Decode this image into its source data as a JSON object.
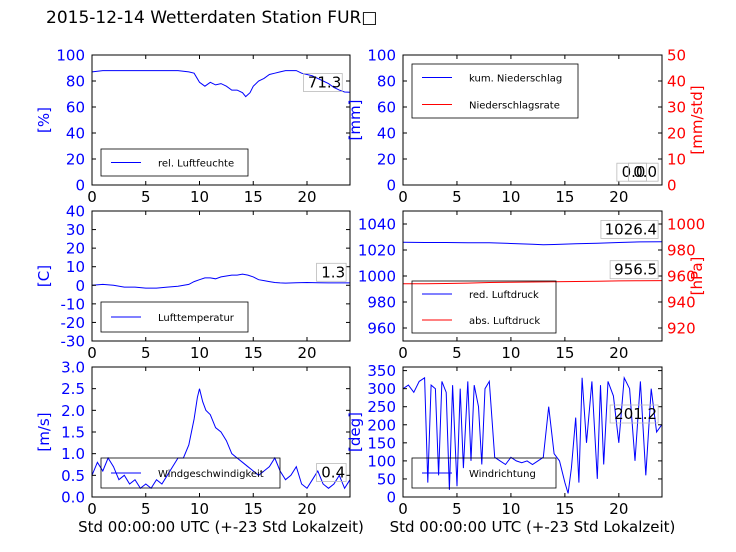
{
  "title": "2015-12-14 Wetterdaten Station FUR□",
  "colors": {
    "primary": "#0000ff",
    "secondary": "#ff0000",
    "axis": "#000000"
  },
  "chart_data": [
    {
      "id": "humidity",
      "type": "line",
      "title": "",
      "xlabel": "",
      "ylabel": "[%]",
      "xlim": [
        0,
        24
      ],
      "ylim": [
        0,
        100
      ],
      "xticks": [
        0,
        5,
        10,
        15,
        20
      ],
      "yticks": [
        0,
        20,
        40,
        60,
        80,
        100
      ],
      "legend_position": "lower-left",
      "series": [
        {
          "name": "rel. Luftfeuchte",
          "color": "#0000ff",
          "x": [
            0,
            1,
            2,
            3,
            4,
            5,
            6,
            7,
            8,
            9,
            9.5,
            10,
            10.5,
            11,
            11.5,
            12,
            12.5,
            13,
            13.5,
            14,
            14.3,
            14.7,
            15,
            15.5,
            16,
            16.5,
            17,
            17.5,
            18,
            18.5,
            19,
            19.5,
            20,
            20.5,
            21,
            21.5,
            22,
            22.5,
            23,
            23.5,
            24
          ],
          "y": [
            87,
            88,
            88,
            88,
            88,
            88,
            88,
            88,
            88,
            87,
            86,
            79,
            76,
            79,
            77,
            78,
            76,
            73,
            73,
            71,
            68,
            71,
            76,
            80,
            82,
            85,
            86,
            87,
            88,
            88,
            88,
            86,
            85,
            84,
            82,
            80,
            78,
            75,
            73,
            71.5,
            71.3
          ]
        }
      ],
      "annotations": [
        {
          "label": "71.3"
        }
      ]
    },
    {
      "id": "precip",
      "type": "line",
      "title": "",
      "xlabel": "",
      "ylabel": "[mm]",
      "ylabel_right": "[mm/std]",
      "xlim": [
        0,
        24
      ],
      "ylim": [
        0,
        100
      ],
      "ylim_right": [
        0,
        50
      ],
      "xticks": [
        0,
        5,
        10,
        15,
        20
      ],
      "yticks": [
        0,
        20,
        40,
        60,
        80,
        100
      ],
      "yticks_right": [
        0,
        10,
        20,
        30,
        40,
        50
      ],
      "legend_position": "upper-left",
      "series": [
        {
          "name": "kum. Niederschlag",
          "color": "#0000ff",
          "axis": "left",
          "x": [
            0,
            24
          ],
          "y": [
            0,
            0
          ]
        },
        {
          "name": "Niederschlagsrate",
          "color": "#ff0000",
          "axis": "right",
          "x": [
            0,
            24
          ],
          "y": [
            0,
            0
          ]
        }
      ],
      "annotations": [
        {
          "label": "0.0"
        },
        {
          "label": "0.0"
        }
      ]
    },
    {
      "id": "temperature",
      "type": "line",
      "title": "",
      "xlabel": "",
      "ylabel": "[C]",
      "xlim": [
        0,
        24
      ],
      "ylim": [
        -30,
        40
      ],
      "xticks": [
        0,
        5,
        10,
        15,
        20
      ],
      "yticks": [
        -30,
        -20,
        -10,
        0,
        10,
        20,
        30,
        40
      ],
      "legend_position": "lower-left",
      "series": [
        {
          "name": "Lufttemperatur",
          "color": "#0000ff",
          "x": [
            0,
            1,
            2,
            3,
            4,
            5,
            6,
            7,
            8,
            9,
            9.5,
            10,
            10.5,
            11,
            11.5,
            12,
            12.5,
            13,
            13.5,
            14,
            14.5,
            15,
            15.5,
            16,
            16.5,
            17,
            17.5,
            18,
            19,
            20,
            21,
            22,
            23,
            24
          ],
          "y": [
            0,
            0.5,
            0,
            -1,
            -1,
            -1.5,
            -1.5,
            -1,
            -0.5,
            0.5,
            2,
            3,
            4,
            4,
            3.5,
            4.5,
            5,
            5.5,
            5.5,
            6,
            5.5,
            4.5,
            3,
            2.5,
            2,
            1.5,
            1.3,
            1.2,
            1.4,
            1.5,
            1.4,
            1.3,
            1.3,
            1.3
          ]
        }
      ],
      "annotations": [
        {
          "label": "1.3"
        }
      ]
    },
    {
      "id": "pressure",
      "type": "line",
      "title": "",
      "xlabel": "",
      "ylabel": "",
      "ylabel_right": "[hPa]",
      "xlim": [
        0,
        24
      ],
      "ylim": [
        950,
        1050
      ],
      "ylim_right": [
        910,
        1010
      ],
      "xticks": [
        0,
        5,
        10,
        15,
        20
      ],
      "yticks": [
        960,
        980,
        1000,
        1020,
        1040
      ],
      "yticks_right": [
        920,
        940,
        960,
        980,
        1000
      ],
      "legend_position": "lower-left",
      "series": [
        {
          "name": "red. Luftdruck",
          "color": "#0000ff",
          "axis": "left",
          "x": [
            0,
            2,
            4,
            6,
            8,
            10,
            12,
            13,
            14,
            16,
            18,
            20,
            22,
            24
          ],
          "y": [
            1026,
            1025.8,
            1025.8,
            1025.6,
            1025.6,
            1025,
            1024.5,
            1024,
            1024.2,
            1024.8,
            1025.2,
            1025.8,
            1026.2,
            1026.4
          ]
        },
        {
          "name": "abs. Luftdruck",
          "color": "#ff0000",
          "axis": "right",
          "x": [
            0,
            2,
            4,
            6,
            8,
            10,
            12,
            14,
            16,
            18,
            20,
            22,
            24
          ],
          "y": [
            954,
            954,
            954.2,
            954.5,
            955,
            955.2,
            955.4,
            955.6,
            955.8,
            956,
            956.2,
            956.4,
            956.5
          ]
        }
      ],
      "annotations": [
        {
          "label": "1026.4"
        },
        {
          "label": "956.5"
        }
      ]
    },
    {
      "id": "windspeed",
      "type": "line",
      "title": "",
      "xlabel": "Std 00:00:00 UTC (+-23 Std Lokalzeit)",
      "ylabel": "[m/s]",
      "xlim": [
        0,
        24
      ],
      "ylim": [
        0,
        3
      ],
      "xticks": [
        0,
        5,
        10,
        15,
        20
      ],
      "yticks": [
        0.0,
        0.5,
        1.0,
        1.5,
        2.0,
        2.5,
        3.0
      ],
      "yticklabels": [
        "0.0",
        "0.5",
        "1.0",
        "1.5",
        "2.0",
        "2.5",
        "3.0"
      ],
      "legend_position": "lower-left",
      "series": [
        {
          "name": "Windgeschwindigkeit",
          "color": "#0000ff",
          "x": [
            0,
            0.5,
            1,
            1.5,
            2,
            2.5,
            3,
            3.5,
            4,
            4.5,
            5,
            5.5,
            6,
            6.5,
            7,
            7.5,
            8,
            8.5,
            9,
            9.5,
            9.8,
            10,
            10.3,
            10.6,
            11,
            11.5,
            12,
            12.5,
            13,
            13.5,
            14,
            14.5,
            15,
            15.5,
            16,
            16.5,
            17,
            17.5,
            18,
            18.5,
            19,
            19.5,
            20,
            20.5,
            21,
            21.5,
            22,
            22.5,
            23,
            23.5,
            24
          ],
          "y": [
            0.5,
            0.8,
            0.6,
            0.9,
            0.7,
            0.4,
            0.5,
            0.3,
            0.4,
            0.2,
            0.3,
            0.2,
            0.4,
            0.3,
            0.5,
            0.7,
            0.9,
            0.9,
            1.2,
            1.8,
            2.3,
            2.5,
            2.2,
            2.0,
            1.9,
            1.6,
            1.5,
            1.3,
            1.0,
            0.9,
            0.8,
            0.7,
            0.6,
            0.5,
            0.6,
            0.7,
            0.9,
            0.6,
            0.4,
            0.5,
            0.7,
            0.3,
            0.2,
            0.4,
            0.6,
            0.3,
            0.2,
            0.3,
            0.5,
            0.2,
            0.4
          ]
        }
      ],
      "annotations": [
        {
          "label": "0.4"
        }
      ]
    },
    {
      "id": "winddir",
      "type": "line",
      "title": "",
      "xlabel": "Std 00:00:00 UTC (+-23 Std Lokalzeit)",
      "ylabel": "[deg]",
      "xlim": [
        0,
        24
      ],
      "ylim": [
        0,
        360
      ],
      "xticks": [
        0,
        5,
        10,
        15,
        20
      ],
      "yticks": [
        0,
        50,
        100,
        150,
        200,
        250,
        300,
        350
      ],
      "legend_position": "lower-left",
      "series": [
        {
          "name": "Windrichtung",
          "color": "#0000ff",
          "x": [
            0,
            0.5,
            1,
            1.5,
            2,
            2.3,
            2.6,
            3,
            3.3,
            3.6,
            4,
            4.3,
            4.6,
            5,
            5.3,
            5.6,
            6,
            6.3,
            6.6,
            7,
            7.3,
            7.6,
            8,
            8.5,
            9,
            9.5,
            10,
            10.5,
            11,
            11.5,
            12,
            12.5,
            13,
            13.5,
            14,
            14.5,
            15,
            15.3,
            15.6,
            16,
            16.3,
            16.6,
            17,
            17.5,
            18,
            18.3,
            18.6,
            19,
            19.5,
            20,
            20.5,
            21,
            21.5,
            22,
            22.5,
            23,
            23.5,
            24
          ],
          "y": [
            300,
            310,
            290,
            320,
            330,
            40,
            310,
            300,
            60,
            320,
            290,
            20,
            310,
            30,
            300,
            80,
            320,
            100,
            310,
            250,
            90,
            300,
            320,
            110,
            100,
            90,
            110,
            100,
            95,
            100,
            90,
            100,
            110,
            250,
            120,
            100,
            40,
            10,
            80,
            220,
            40,
            330,
            150,
            320,
            50,
            310,
            90,
            320,
            280,
            150,
            330,
            300,
            100,
            320,
            60,
            300,
            180,
            201
          ]
        }
      ],
      "annotations": [
        {
          "label": "201.2"
        }
      ]
    }
  ]
}
